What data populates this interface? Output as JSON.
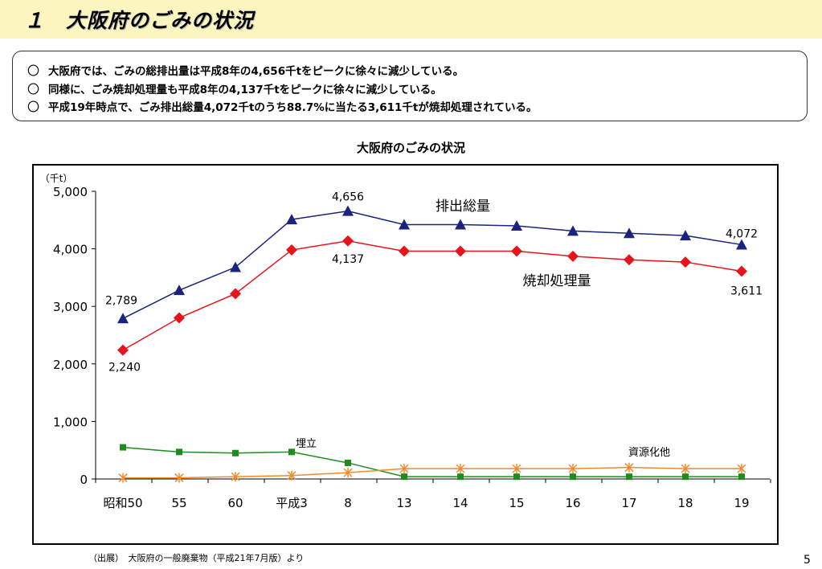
{
  "slide": {
    "title": "１　大阪府のごみの状況",
    "summary": [
      "大阪府では、ごみの総排出量は平成8年の4,656千tをピークに徐々に減少している。",
      "同様に、ごみ焼却処理量も平成8年の4,137千tをピークに徐々に減少している。",
      "平成19年時点で、ごみ排出総量4,072千tのうち88.7%に当たる3,611千tが焼却処理されている。"
    ],
    "bullet_mark": "〇",
    "source": "（出展）　大阪府の一般廃棄物（平成21年7月版）より",
    "page_number": "5"
  },
  "chart_data": {
    "type": "line",
    "title": "大阪府のごみの状況",
    "ylabel": "（千t）",
    "ylim": [
      0,
      5000
    ],
    "yticks": [
      0,
      1000,
      2000,
      3000,
      4000,
      5000
    ],
    "ytick_labels": [
      "0",
      "1,000",
      "2,000",
      "3,000",
      "4,000",
      "5,000"
    ],
    "categories": [
      "昭和50",
      "55",
      "60",
      "平成3",
      "8",
      "13",
      "14",
      "15",
      "16",
      "17",
      "18",
      "19"
    ],
    "series": [
      {
        "name": "排出総量",
        "color": "#1a237e",
        "marker": "triangle",
        "values": [
          2789,
          3280,
          3680,
          4510,
          4656,
          4420,
          4420,
          4400,
          4310,
          4270,
          4230,
          4072
        ]
      },
      {
        "name": "焼却処理量",
        "color": "#e8141c",
        "marker": "diamond",
        "values": [
          2240,
          2800,
          3220,
          3980,
          4137,
          3960,
          3960,
          3960,
          3870,
          3810,
          3770,
          3611
        ]
      },
      {
        "name": "埋立",
        "color": "#1e8c1e",
        "marker": "square",
        "values": [
          550,
          470,
          450,
          470,
          280,
          40,
          40,
          40,
          40,
          40,
          40,
          40
        ]
      },
      {
        "name": "資源化他",
        "color": "#f08a2c",
        "marker": "asterisk",
        "values": [
          20,
          20,
          40,
          60,
          110,
          180,
          180,
          180,
          180,
          200,
          180,
          180
        ]
      }
    ],
    "data_labels": [
      {
        "series": 0,
        "index": 0,
        "text": "2,789"
      },
      {
        "series": 0,
        "index": 4,
        "text": "4,656"
      },
      {
        "series": 0,
        "index": 11,
        "text": "4,072"
      },
      {
        "series": 1,
        "index": 0,
        "text": "2,240"
      },
      {
        "series": 1,
        "index": 4,
        "text": "4,137"
      },
      {
        "series": 1,
        "index": 11,
        "text": "3,611"
      }
    ],
    "grid": false,
    "legend": "inline labels"
  }
}
